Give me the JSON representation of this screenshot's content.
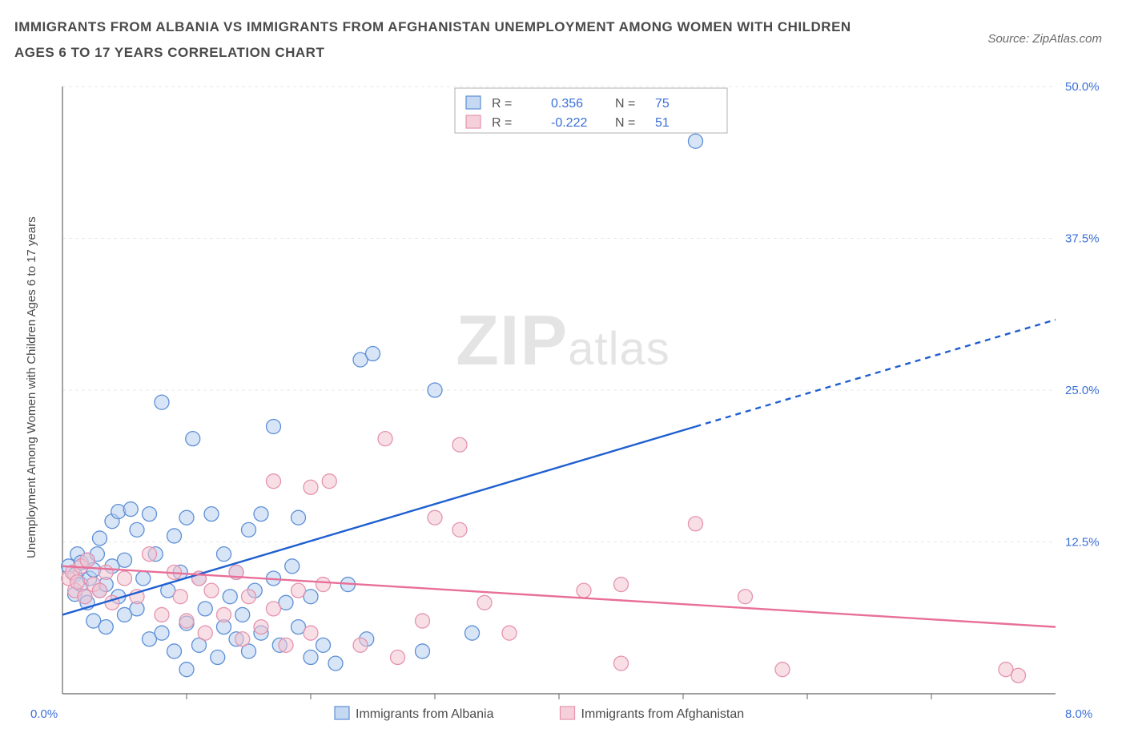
{
  "title": "IMMIGRANTS FROM ALBANIA VS IMMIGRANTS FROM AFGHANISTAN UNEMPLOYMENT AMONG WOMEN WITH CHILDREN AGES 6 TO 17 YEARS CORRELATION CHART",
  "source_label": "Source: ZipAtlas.com",
  "watermark": {
    "left": "ZIP",
    "right": "atlas"
  },
  "chart": {
    "type": "scatter",
    "background_color": "#ffffff",
    "grid_color": "#e8e8e8",
    "axis_color": "#666666",
    "ylabel": "Unemployment Among Women with Children Ages 6 to 17 years",
    "ylabel_fontsize": 15,
    "ylabel_color": "#4a4a4a",
    "xlim": [
      0,
      8.0
    ],
    "ylim": [
      0,
      50
    ],
    "xtick_step": 1.0,
    "ytick_step": 12.5,
    "x_corner_label": "0.0%",
    "x_end_label": "8.0%",
    "ytick_labels": [
      "12.5%",
      "25.0%",
      "37.5%",
      "50.0%"
    ],
    "corner_label_color": "#3a6fd8",
    "tick_label_fontsize": 15,
    "marker_radius": 9,
    "marker_stroke_width": 1.3,
    "series": [
      {
        "name": "Immigrants from Albania",
        "fill": "#b7cff0",
        "fill_opacity": 0.55,
        "stroke": "#5d8fd6",
        "R": "0.356",
        "N": "75",
        "trend": {
          "x1": 0.0,
          "y1": 6.5,
          "x2": 5.1,
          "y2": 22.0,
          "x2_ext": 8.0,
          "y2_ext": 30.8,
          "color": "#1f5fd0",
          "width": 2.4
        },
        "points": [
          [
            0.05,
            10.5
          ],
          [
            0.1,
            9.8
          ],
          [
            0.1,
            8.2
          ],
          [
            0.12,
            11.5
          ],
          [
            0.15,
            9.0
          ],
          [
            0.15,
            10.8
          ],
          [
            0.18,
            8.0
          ],
          [
            0.2,
            11.0
          ],
          [
            0.2,
            7.5
          ],
          [
            0.22,
            9.5
          ],
          [
            0.25,
            10.2
          ],
          [
            0.25,
            6.0
          ],
          [
            0.28,
            11.5
          ],
          [
            0.3,
            8.5
          ],
          [
            0.3,
            12.8
          ],
          [
            0.35,
            9.0
          ],
          [
            0.35,
            5.5
          ],
          [
            0.4,
            10.5
          ],
          [
            0.4,
            14.2
          ],
          [
            0.45,
            8.0
          ],
          [
            0.45,
            15.0
          ],
          [
            0.5,
            6.5
          ],
          [
            0.5,
            11.0
          ],
          [
            0.55,
            15.2
          ],
          [
            0.6,
            7.0
          ],
          [
            0.6,
            13.5
          ],
          [
            0.65,
            9.5
          ],
          [
            0.7,
            4.5
          ],
          [
            0.7,
            14.8
          ],
          [
            0.75,
            11.5
          ],
          [
            0.8,
            5.0
          ],
          [
            0.8,
            24.0
          ],
          [
            0.85,
            8.5
          ],
          [
            0.9,
            13.0
          ],
          [
            0.9,
            3.5
          ],
          [
            0.95,
            10.0
          ],
          [
            1.0,
            5.8
          ],
          [
            1.0,
            14.5
          ],
          [
            1.05,
            21.0
          ],
          [
            1.1,
            4.0
          ],
          [
            1.1,
            9.5
          ],
          [
            1.15,
            7.0
          ],
          [
            1.2,
            14.8
          ],
          [
            1.25,
            3.0
          ],
          [
            1.3,
            11.5
          ],
          [
            1.3,
            5.5
          ],
          [
            1.35,
            8.0
          ],
          [
            1.4,
            4.5
          ],
          [
            1.4,
            10.0
          ],
          [
            1.45,
            6.5
          ],
          [
            1.5,
            13.5
          ],
          [
            1.5,
            3.5
          ],
          [
            1.55,
            8.5
          ],
          [
            1.6,
            14.8
          ],
          [
            1.6,
            5.0
          ],
          [
            1.7,
            9.5
          ],
          [
            1.7,
            22.0
          ],
          [
            1.75,
            4.0
          ],
          [
            1.8,
            7.5
          ],
          [
            1.85,
            10.5
          ],
          [
            1.9,
            5.5
          ],
          [
            1.9,
            14.5
          ],
          [
            2.0,
            3.0
          ],
          [
            2.0,
            8.0
          ],
          [
            2.1,
            4.0
          ],
          [
            2.2,
            2.5
          ],
          [
            2.3,
            9.0
          ],
          [
            2.4,
            27.5
          ],
          [
            2.45,
            4.5
          ],
          [
            2.5,
            28.0
          ],
          [
            2.9,
            3.5
          ],
          [
            3.0,
            25.0
          ],
          [
            3.3,
            5.0
          ],
          [
            5.1,
            45.5
          ],
          [
            1.0,
            2.0
          ]
        ]
      },
      {
        "name": "Immigrants from Afghanistan",
        "fill": "#f2c4d1",
        "fill_opacity": 0.55,
        "stroke": "#e593ae",
        "R": "-0.222",
        "N": "51",
        "trend": {
          "x1": 0.0,
          "y1": 10.5,
          "x2": 8.0,
          "y2": 5.5,
          "color": "#e86f98",
          "width": 2.4
        },
        "points": [
          [
            0.05,
            9.5
          ],
          [
            0.08,
            10.0
          ],
          [
            0.1,
            8.5
          ],
          [
            0.12,
            9.2
          ],
          [
            0.15,
            10.5
          ],
          [
            0.18,
            8.0
          ],
          [
            0.2,
            11.0
          ],
          [
            0.25,
            9.0
          ],
          [
            0.3,
            8.5
          ],
          [
            0.35,
            10.0
          ],
          [
            0.4,
            7.5
          ],
          [
            0.5,
            9.5
          ],
          [
            0.6,
            8.0
          ],
          [
            0.7,
            11.5
          ],
          [
            0.8,
            6.5
          ],
          [
            0.9,
            10.0
          ],
          [
            0.95,
            8.0
          ],
          [
            1.0,
            6.0
          ],
          [
            1.1,
            9.5
          ],
          [
            1.15,
            5.0
          ],
          [
            1.2,
            8.5
          ],
          [
            1.3,
            6.5
          ],
          [
            1.4,
            10.0
          ],
          [
            1.45,
            4.5
          ],
          [
            1.5,
            8.0
          ],
          [
            1.6,
            5.5
          ],
          [
            1.7,
            7.0
          ],
          [
            1.7,
            17.5
          ],
          [
            1.8,
            4.0
          ],
          [
            1.9,
            8.5
          ],
          [
            2.0,
            17.0
          ],
          [
            2.0,
            5.0
          ],
          [
            2.1,
            9.0
          ],
          [
            2.15,
            17.5
          ],
          [
            2.4,
            4.0
          ],
          [
            2.6,
            21.0
          ],
          [
            2.7,
            3.0
          ],
          [
            2.9,
            6.0
          ],
          [
            3.0,
            14.5
          ],
          [
            3.2,
            13.5
          ],
          [
            3.2,
            20.5
          ],
          [
            3.4,
            7.5
          ],
          [
            3.6,
            5.0
          ],
          [
            4.2,
            8.5
          ],
          [
            4.5,
            2.5
          ],
          [
            4.5,
            9.0
          ],
          [
            5.1,
            14.0
          ],
          [
            5.5,
            8.0
          ],
          [
            5.8,
            2.0
          ],
          [
            7.6,
            2.0
          ],
          [
            7.7,
            1.5
          ]
        ]
      }
    ],
    "top_legend": {
      "border_color": "#b0b0b0",
      "text_color": "#555555",
      "value_color": "#3a6fd8",
      "fontsize": 16
    },
    "bottom_legend": {
      "text_color": "#4a4a4a",
      "fontsize": 16
    }
  }
}
